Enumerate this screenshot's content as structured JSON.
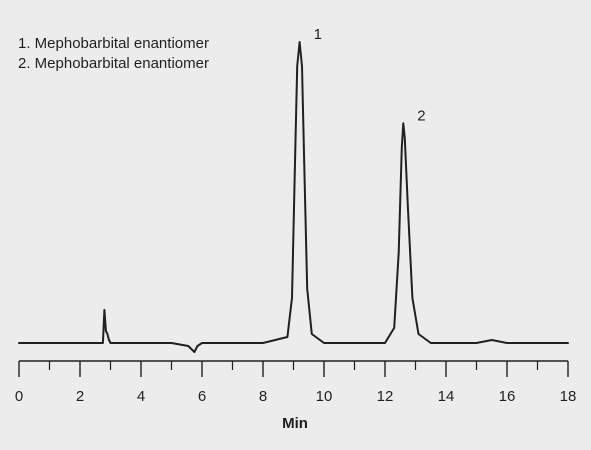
{
  "chart_data": {
    "type": "line",
    "title": "",
    "xlabel": "Min",
    "ylabel": "",
    "xlim": [
      0,
      18
    ],
    "x_ticks": [
      "0",
      "2",
      "4",
      "6",
      "8",
      "10",
      "12",
      "14",
      "16",
      "18"
    ],
    "grid": false,
    "legend": {
      "placement": "top-left",
      "entries": [
        "1. Mephobarbital enantiomer",
        "2. Mephobarbital enantiomer"
      ]
    },
    "peaks": [
      {
        "label": "1",
        "retention_time_min": 9.2,
        "relative_height": 1.0
      },
      {
        "label": "2",
        "retention_time_min": 12.6,
        "relative_height": 0.73
      }
    ],
    "series": [
      {
        "x": [
          0,
          1,
          2,
          2.75,
          2.8,
          2.85,
          2.9,
          2.95,
          3.0,
          3.2,
          4,
          5,
          5.55,
          5.75,
          5.85,
          6,
          7,
          8,
          8.8,
          8.95,
          9.05,
          9.12,
          9.2,
          9.28,
          9.35,
          9.45,
          9.6,
          10,
          11,
          12.0,
          12.3,
          12.45,
          12.55,
          12.6,
          12.65,
          12.75,
          12.9,
          13.1,
          13.5,
          14,
          15,
          15.5,
          16,
          17,
          18
        ],
        "y": [
          0,
          0,
          0,
          0,
          0.11,
          0.04,
          0.03,
          0.01,
          0,
          0,
          0,
          0,
          -0.01,
          -0.03,
          -0.01,
          0,
          0,
          0,
          0.02,
          0.15,
          0.6,
          0.92,
          1.0,
          0.92,
          0.6,
          0.18,
          0.03,
          0,
          0,
          0,
          0.05,
          0.3,
          0.65,
          0.73,
          0.68,
          0.45,
          0.15,
          0.03,
          0,
          0,
          0,
          0.01,
          0,
          0,
          0
        ]
      }
    ]
  }
}
